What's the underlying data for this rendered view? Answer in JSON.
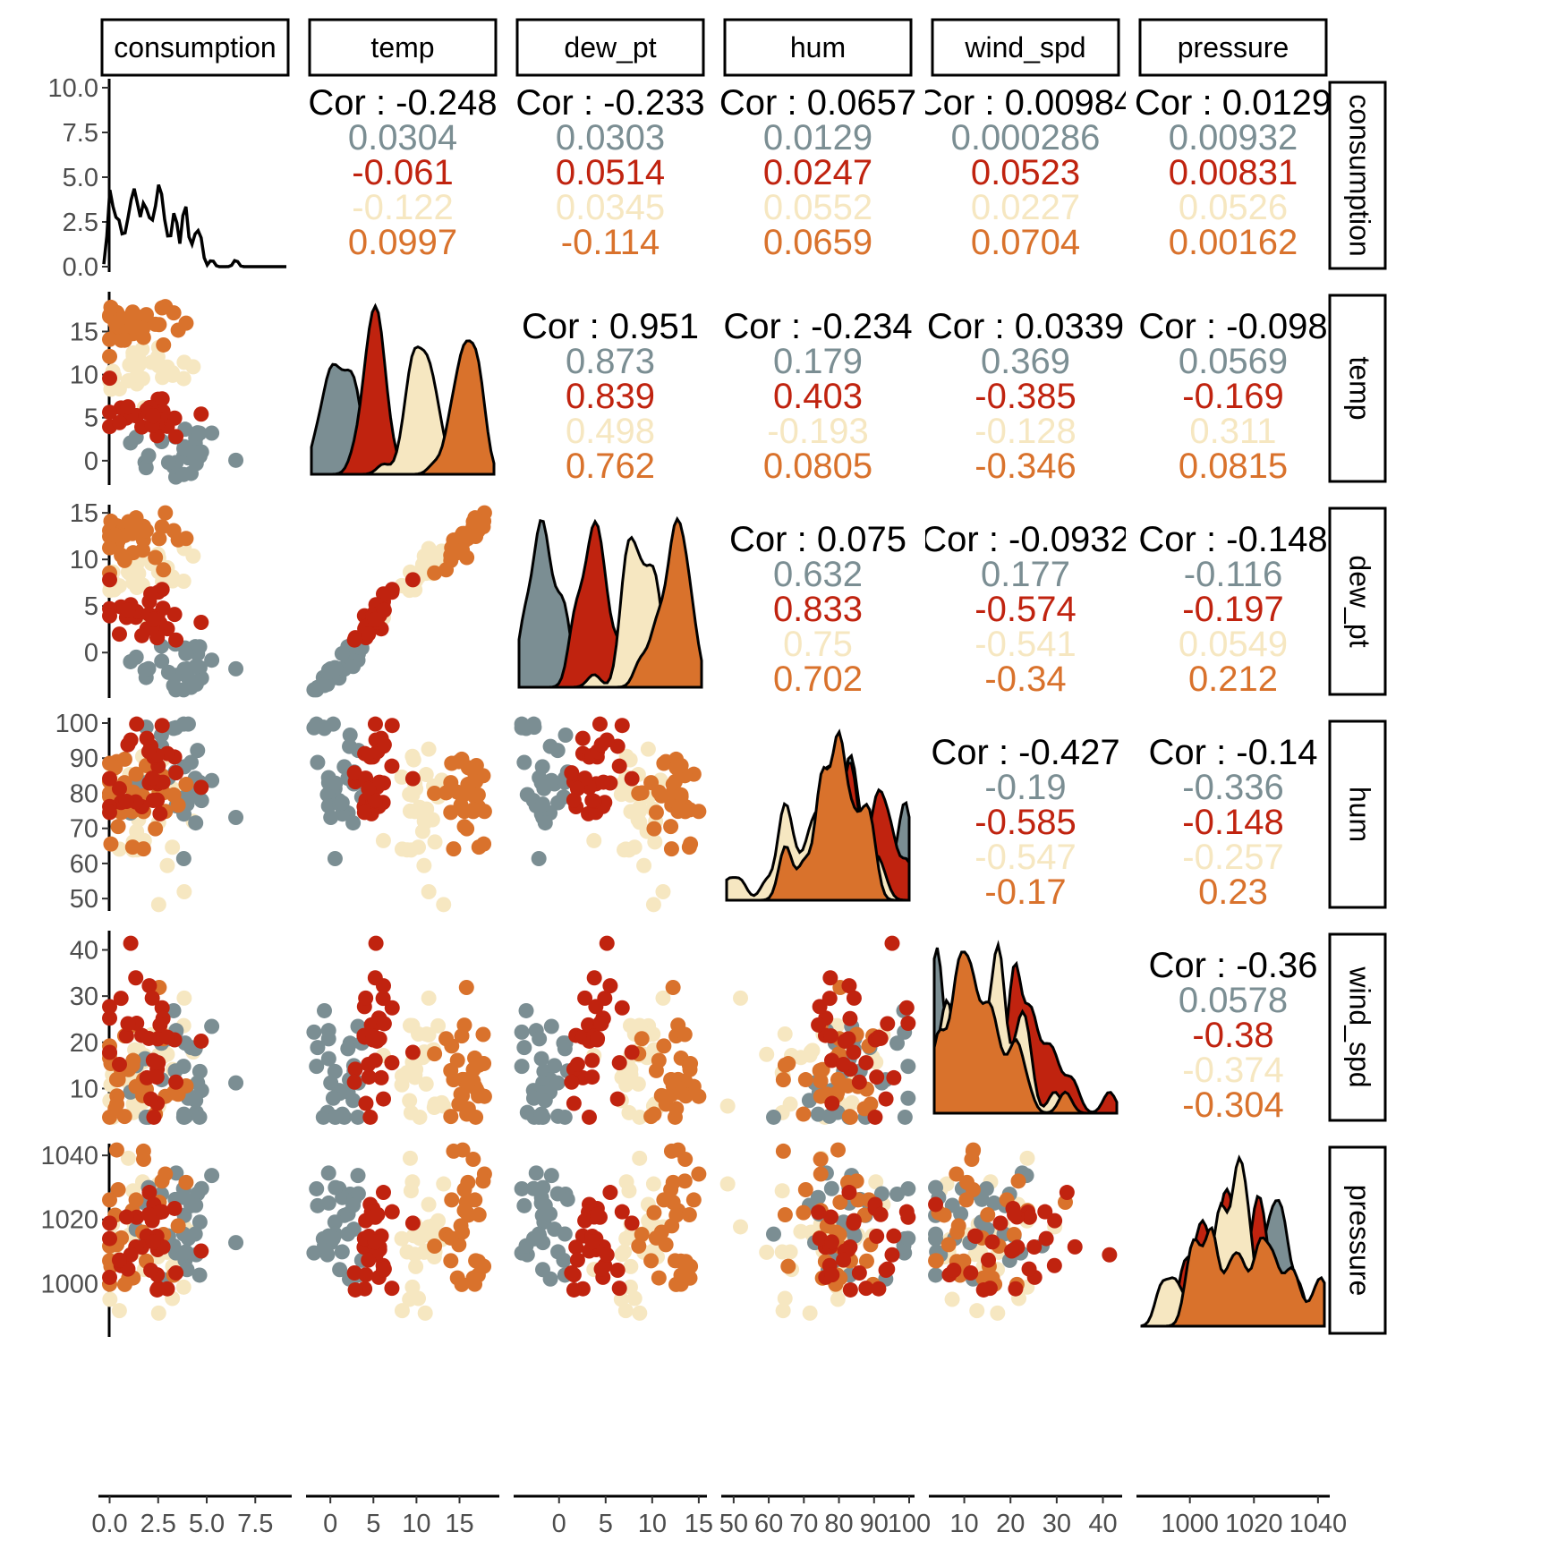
{
  "chart_data": {
    "type": "scatter",
    "variables": [
      "consumption",
      "temp",
      "dew_pt",
      "hum",
      "wind_spd",
      "pressure"
    ],
    "groups": [
      {
        "color": "#7b8e93"
      },
      {
        "color": "#c0230f"
      },
      {
        "color": "#f6e7c1"
      },
      {
        "color": "#d9722c"
      }
    ],
    "cor_prefix": "Cor : ",
    "correlations": {
      "0-1": {
        "overall": "-0.248",
        "groups": [
          "0.0304",
          "-0.061",
          "-0.122",
          "0.0997"
        ]
      },
      "0-2": {
        "overall": "-0.233",
        "groups": [
          "0.0303",
          "0.0514",
          "0.0345",
          "-0.114"
        ]
      },
      "0-3": {
        "overall": "0.0657",
        "groups": [
          "0.0129",
          "0.0247",
          "0.0552",
          "0.0659"
        ]
      },
      "0-4": {
        "overall": "0.00984",
        "groups": [
          "0.000286",
          "0.0523",
          "0.0227",
          "0.0704"
        ]
      },
      "0-5": {
        "overall": "0.0129",
        "groups": [
          "0.00932",
          "0.00831",
          "0.0526",
          "0.00162"
        ]
      },
      "1-2": {
        "overall": "0.951",
        "groups": [
          "0.873",
          "0.839",
          "0.498",
          "0.762"
        ]
      },
      "1-3": {
        "overall": "-0.234",
        "groups": [
          "0.179",
          "0.403",
          "-0.193",
          "0.0805"
        ]
      },
      "1-4": {
        "overall": "0.0339",
        "groups": [
          "0.369",
          "-0.385",
          "-0.128",
          "-0.346"
        ]
      },
      "1-5": {
        "overall": "-0.098",
        "groups": [
          "0.0569",
          "-0.169",
          "0.311",
          "0.0815"
        ]
      },
      "2-3": {
        "overall": "0.075",
        "groups": [
          "0.632",
          "0.833",
          "0.75",
          "0.702"
        ]
      },
      "2-4": {
        "overall": "-0.0932",
        "groups": [
          "0.177",
          "-0.574",
          "-0.541",
          "-0.34"
        ]
      },
      "2-5": {
        "overall": "-0.148",
        "groups": [
          "-0.116",
          "-0.197",
          "0.0549",
          "0.212"
        ]
      },
      "3-4": {
        "overall": "-0.427",
        "groups": [
          "-0.19",
          "-0.585",
          "-0.547",
          "-0.17"
        ]
      },
      "3-5": {
        "overall": "-0.14",
        "groups": [
          "-0.336",
          "-0.148",
          "-0.257",
          "0.23"
        ]
      },
      "4-5": {
        "overall": "-0.36",
        "groups": [
          "0.0578",
          "-0.38",
          "-0.374",
          "-0.304"
        ]
      }
    },
    "axes": {
      "consumption": {
        "range": [
          -0.3,
          9.1
        ],
        "ticks": [
          0.0,
          2.5,
          5.0,
          7.5
        ],
        "tick_labels": [
          "0.0",
          "2.5",
          "5.0",
          "7.5"
        ]
      },
      "temp": {
        "range": [
          -2.2,
          19.0
        ],
        "ticks": [
          0,
          5,
          10,
          15
        ],
        "tick_labels": [
          "0",
          "5",
          "10",
          "15"
        ]
      },
      "dew_pt": {
        "range": [
          -4.3,
          15.3
        ],
        "ticks": [
          0,
          5,
          10,
          15
        ],
        "tick_labels": [
          "0",
          "5",
          "10",
          "15"
        ]
      },
      "hum": {
        "range": [
          48,
          100
        ],
        "ticks": [
          50,
          60,
          70,
          80,
          90,
          100
        ],
        "tick_labels": [
          "50",
          "60",
          "70",
          "80",
          "90",
          "100"
        ]
      },
      "wind_spd": {
        "range": [
          3.5,
          43
        ],
        "ticks": [
          10,
          20,
          30,
          40
        ],
        "tick_labels": [
          "10",
          "20",
          "30",
          "40"
        ]
      },
      "pressure": {
        "range": [
          985,
          1042
        ],
        "ticks": [
          1000,
          1020,
          1040
        ],
        "tick_labels": [
          "1000",
          "1020",
          "1040"
        ]
      }
    },
    "consumption_density_axis": {
      "range": [
        0,
        10.2
      ],
      "ticks": [
        0.0,
        2.5,
        5.0,
        7.5,
        10.0
      ],
      "tick_labels": [
        "0.0",
        "2.5",
        "5.0",
        "7.5",
        "10.0"
      ]
    },
    "observations": {
      "count": 120,
      "variable_order": [
        "consumption",
        "temp",
        "dew_pt",
        "hum",
        "wind_spd",
        "pressure"
      ],
      "group_means": [
        [
          3.5,
          1.0,
          -1.5,
          85,
          12,
          1018
        ],
        [
          2.0,
          5.5,
          4.0,
          86,
          22,
          1012
        ],
        [
          1.5,
          10.5,
          8.5,
          75,
          17,
          1015
        ],
        [
          1.0,
          15.5,
          12.0,
          78,
          15,
          1018
        ]
      ]
    },
    "grid": false,
    "legend": "none"
  }
}
